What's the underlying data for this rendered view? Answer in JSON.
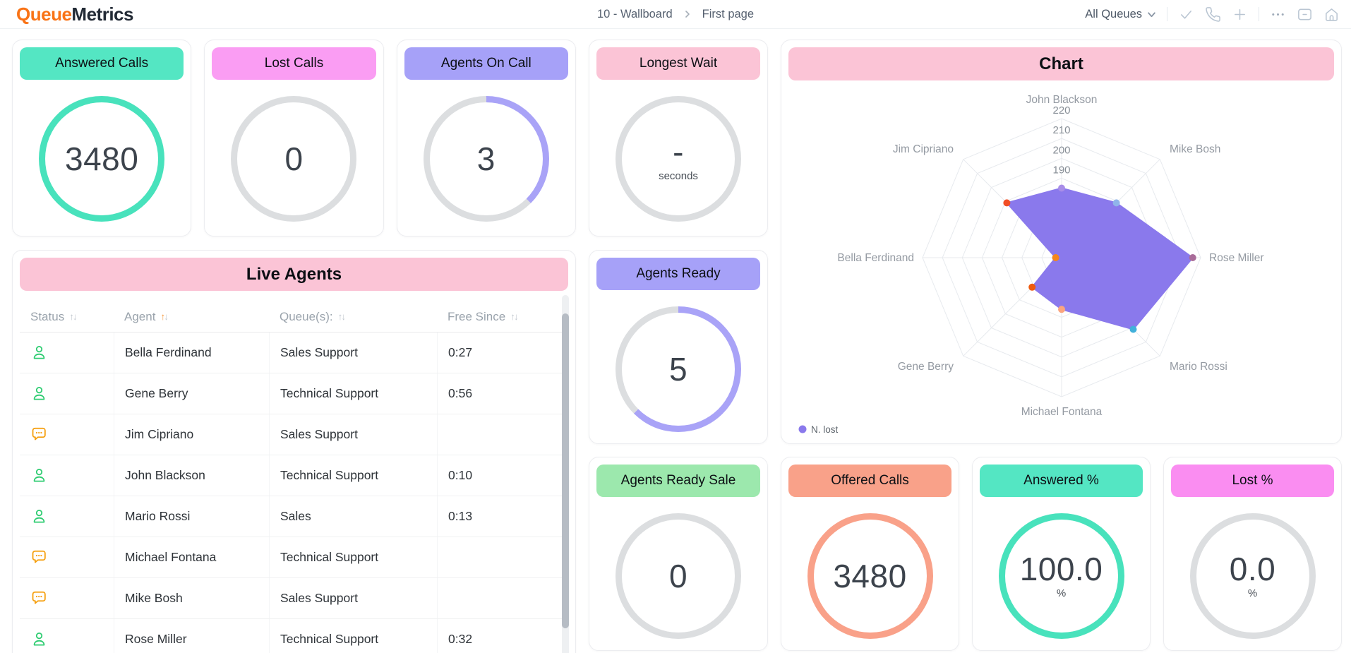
{
  "nav": {
    "logo_part1": "Queue",
    "logo_part2": "Metrics",
    "breadcrumb_1": "10 - Wallboard",
    "breadcrumb_2": "First page",
    "queue_selector": "All Queues",
    "toolbar_icons": [
      "check-icon",
      "phone-icon",
      "plus-icon",
      "ellipsis-icon",
      "folder-minus-icon",
      "home-icon"
    ]
  },
  "colors": {
    "logo_orange": "#f97316",
    "logo_dark": "#222a35",
    "light_pink": "#fbc4d6",
    "ring_track": "#dcdee0",
    "available_green": "#2ecc71",
    "busy_orange": "#f59e0b",
    "radar_fill": "#8a79ec"
  },
  "sort_glyphs": {
    "asc": "↑",
    "desc": "↓"
  },
  "stat_cards": [
    {
      "id": "answered-calls",
      "label": "Answered Calls",
      "value": "3480",
      "sub": "",
      "badge_bg": "#54e6c3",
      "ring_color": "#48e2bc",
      "ring_pct": 100
    },
    {
      "id": "lost-calls",
      "label": "Lost Calls",
      "value": "0",
      "sub": "",
      "badge_bg": "#fa9df3",
      "ring_color": "#dcdee0",
      "ring_pct": 0
    },
    {
      "id": "agents-on-call",
      "label": "Agents On Call",
      "value": "3",
      "sub": "",
      "badge_bg": "#a6a1f8",
      "ring_color": "#a9a3f7",
      "ring_pct": 37.5
    },
    {
      "id": "longest-wait",
      "label": "Longest Wait",
      "value": "-",
      "sub": "seconds",
      "badge_bg": "#fbc4d6",
      "ring_color": "#dcdee0",
      "ring_pct": 0
    },
    {
      "id": "agents-ready",
      "label": "Agents Ready",
      "value": "5",
      "sub": "",
      "badge_bg": "#a6a1f8",
      "ring_color": "#a9a3f7",
      "ring_pct": 62.5
    },
    {
      "id": "agents-ready-sale",
      "label": "Agents Ready Sale",
      "value": "0",
      "sub": "",
      "badge_bg": "#9ce8ad",
      "ring_color": "#dcdee0",
      "ring_pct": 0
    },
    {
      "id": "offered-calls",
      "label": "Offered Calls",
      "value": "3480",
      "sub": "",
      "badge_bg": "#f9a189",
      "ring_color": "#f9a189",
      "ring_pct": 100
    },
    {
      "id": "answered-pct",
      "label": "Answered %",
      "value": "100.0",
      "sub": "%",
      "badge_bg": "#54e6c3",
      "ring_color": "#48e2bc",
      "ring_pct": 100
    },
    {
      "id": "lost-pct",
      "label": "Lost %",
      "value": "0.0",
      "sub": "%",
      "badge_bg": "#fa8df1",
      "ring_color": "#dcdee0",
      "ring_pct": 0
    }
  ],
  "live_agents": {
    "title": "Live Agents",
    "columns": [
      {
        "label": "Status",
        "sort": "none"
      },
      {
        "label": "Agent",
        "sort": "asc"
      },
      {
        "label": "Queue(s):",
        "sort": "none"
      },
      {
        "label": "Free Since",
        "sort": "none"
      }
    ],
    "rows": [
      {
        "status": "available",
        "agent": "Bella Ferdinand",
        "queue": "Sales Support",
        "free_since": "0:27"
      },
      {
        "status": "available",
        "agent": "Gene Berry",
        "queue": "Technical Support",
        "free_since": "0:56"
      },
      {
        "status": "chat",
        "agent": "Jim Cipriano",
        "queue": "Sales Support",
        "free_since": ""
      },
      {
        "status": "available",
        "agent": "John Blackson",
        "queue": "Technical Support",
        "free_since": "0:10"
      },
      {
        "status": "available",
        "agent": "Mario Rossi",
        "queue": "Sales",
        "free_since": "0:13"
      },
      {
        "status": "chat",
        "agent": "Michael Fontana",
        "queue": "Technical Support",
        "free_since": ""
      },
      {
        "status": "chat",
        "agent": "Mike Bosh",
        "queue": "Sales Support",
        "free_since": ""
      },
      {
        "status": "available",
        "agent": "Rose Miller",
        "queue": "Technical Support",
        "free_since": "0:32"
      }
    ]
  },
  "chart_data": {
    "type": "radar",
    "title": "Chart",
    "indicators": [
      "John Blackson",
      "Mike Bosh",
      "Rose Miller",
      "Mario Rossi",
      "Michael Fontana",
      "Gene Berry",
      "Bella Ferdinand",
      "Jim Cipriano"
    ],
    "scale": {
      "center_value": 150,
      "max": 220,
      "ring_step": 10,
      "tick_labels": [
        190,
        200,
        210,
        220
      ]
    },
    "legend_position": "bottom-left",
    "series": [
      {
        "name": "N. lost",
        "fill_color": "#8a79ec",
        "values": [
          185,
          189,
          216,
          201,
          176,
          171,
          153,
          189
        ],
        "point_colors": [
          "#a88de8",
          "#90b4ea",
          "#a96c99",
          "#41b0da",
          "#fba57f",
          "#ee5a0e",
          "#f5861c",
          "#f14e26"
        ]
      }
    ]
  }
}
